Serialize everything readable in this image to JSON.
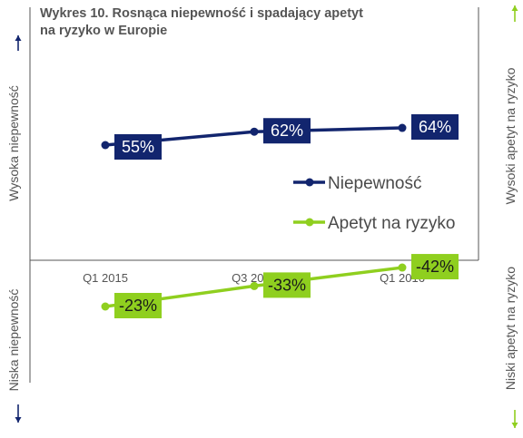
{
  "chart_data": {
    "type": "line",
    "title_line1": "Wykres 10. Rosnąca niepewność i spadający apetyt",
    "title_line2": "na ryzyko w Europie",
    "categories": [
      "Q1 2015",
      "Q3 2015",
      "Q1 2016"
    ],
    "series": [
      {
        "name": "Niepewność",
        "values": [
          55,
          62,
          64
        ],
        "labels": [
          "55%",
          "62%",
          "64%"
        ],
        "color": "#12256e"
      },
      {
        "name": "Apetyt na ryzyko",
        "values": [
          -23,
          -33,
          -42
        ],
        "labels": [
          "-23%",
          "-33%",
          "-42%"
        ],
        "color": "#8fcf1f"
      }
    ],
    "axis_labels": {
      "left_top": "Wysoka niepewność",
      "left_bottom": "Niska niepewność",
      "right_top": "Wysoki apetyt na ryzyko",
      "right_bottom": "Niski apetyt na ryzyko"
    },
    "legend_placement": "center-right",
    "grid": false,
    "colors": {
      "uncertainty": "#12256e",
      "appetite": "#8fcf1f",
      "frame": "#555555"
    }
  }
}
